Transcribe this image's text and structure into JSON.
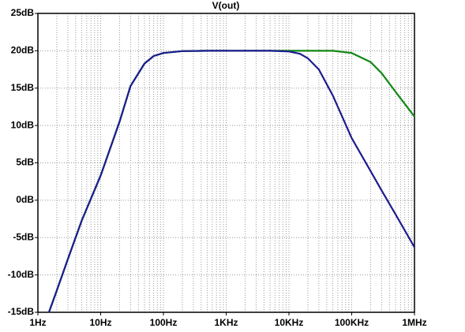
{
  "chart_data": {
    "type": "line",
    "title": "V(out)",
    "title_color": "#118811",
    "x": [
      1.5,
      2,
      3,
      5,
      10,
      20,
      30,
      50,
      70,
      100,
      200,
      500,
      1000,
      5000,
      10000,
      15000,
      20000,
      30000,
      50000,
      100000,
      200000,
      300000,
      500000,
      1000000
    ],
    "series": [
      {
        "color": "#118811",
        "values": [
          -15,
          -12.1,
          -7.9,
          -2.7,
          3.3,
          10.5,
          15.3,
          18.3,
          19.3,
          19.7,
          19.95,
          20,
          20,
          20,
          20,
          20,
          20,
          20,
          20,
          19.7,
          18.5,
          17,
          14.5,
          11.2
        ]
      },
      {
        "color": "#1c1c8f",
        "values": [
          -15,
          -12.1,
          -7.9,
          -2.7,
          3.3,
          10.5,
          15.3,
          18.3,
          19.3,
          19.7,
          19.95,
          20,
          20,
          20,
          19.9,
          19.6,
          19,
          17.5,
          14,
          8.3,
          3.9,
          1.3,
          -1.9,
          -6.3
        ]
      }
    ],
    "log_x": true,
    "grid": true,
    "xlim": [
      1,
      1000000
    ],
    "xticks": [
      {
        "value": 1,
        "label": "1Hz"
      },
      {
        "value": 10,
        "label": "10Hz"
      },
      {
        "value": 100,
        "label": "100Hz"
      },
      {
        "value": 1000,
        "label": "1KHz"
      },
      {
        "value": 10000,
        "label": "10KHz"
      },
      {
        "value": 100000,
        "label": "100KHz"
      },
      {
        "value": 1000000,
        "label": "1MHz"
      }
    ],
    "ylim": [
      -15,
      25
    ],
    "yticks": [
      {
        "value": -15,
        "label": "-15dB"
      },
      {
        "value": -10,
        "label": "-10dB"
      },
      {
        "value": -5,
        "label": "-5dB"
      },
      {
        "value": 0,
        "label": "0dB"
      },
      {
        "value": 5,
        "label": "5dB"
      },
      {
        "value": 10,
        "label": "10dB"
      },
      {
        "value": 15,
        "label": "15dB"
      },
      {
        "value": 20,
        "label": "20dB"
      },
      {
        "value": 25,
        "label": "25dB"
      }
    ]
  }
}
